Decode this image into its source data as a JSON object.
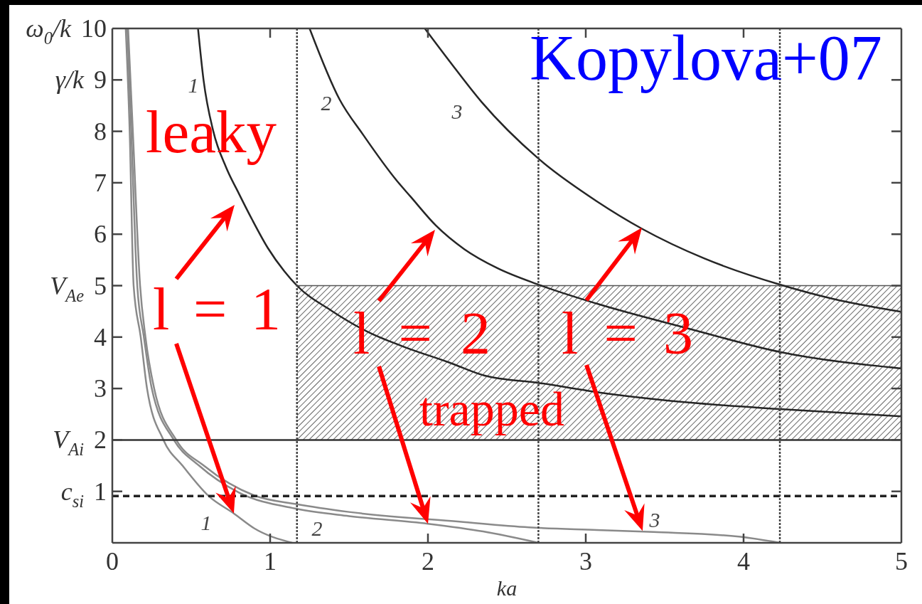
{
  "chart_data": {
    "type": "line",
    "xlabel": "ka",
    "xlim": [
      0,
      5
    ],
    "xticks": [
      0,
      1,
      2,
      3,
      4,
      5
    ],
    "ylim": [
      0,
      10
    ],
    "yticks": [
      {
        "value": 1,
        "label": "c$_{si}$ 1"
      },
      {
        "value": 2,
        "label": "V$_{Ai}$ 2"
      },
      3,
      4,
      {
        "value": 5,
        "label": "V$_{Ae}$ 5"
      },
      6,
      7,
      8,
      {
        "value": 9,
        "label": "γ/k 9"
      },
      {
        "value": 10,
        "label": "ω$_{0}$/k 10"
      }
    ],
    "series": [
      {
        "color": "#555555",
        "x": [
          1.17,
          5
        ],
        "values": [
          5,
          5
        ],
        "lower": [
          2,
          2
        ],
        "upper": [
          5,
          5
        ]
      },
      {
        "color": "#262626",
        "x": [
          0.543,
          0.578,
          0.64,
          0.721,
          0.802,
          0.885,
          0.986,
          1.09,
          1.17,
          1.39,
          1.62,
          1.84,
          2.14,
          2.36,
          2.7,
          3.07,
          3.72,
          4.23,
          5
        ],
        "values": [
          10,
          9,
          8,
          7.3,
          6.79,
          6.29,
          5.73,
          5.28,
          5,
          4.51,
          4.1,
          3.82,
          3.5,
          3.25,
          3.11,
          2.93,
          2.71,
          2.6,
          2.46
        ]
      },
      {
        "color": "#262626",
        "x": [
          1.25,
          1.44,
          1.59,
          1.8,
          1.89,
          2.05,
          2.23,
          2.44,
          2.7,
          3.07,
          3.67,
          4.23,
          5
        ],
        "values": [
          10,
          8.62,
          7.93,
          7.05,
          6.73,
          6.17,
          5.71,
          5.34,
          5.02,
          4.65,
          4.15,
          3.71,
          3.39
        ]
      },
      {
        "color": "#262626",
        "x": [
          1.98,
          2.14,
          2.34,
          2.7,
          3.07,
          3.36,
          3.75,
          4.23,
          4.57,
          5
        ],
        "values": [
          10,
          9.35,
          8.57,
          7.47,
          6.64,
          6.1,
          5.53,
          5.02,
          4.74,
          4.49
        ]
      },
      {
        "color": "#8a8a8a",
        "x": [
          0.085,
          0.11,
          0.135,
          0.18,
          0.22,
          0.324,
          0.445,
          0.61,
          0.77,
          0.9,
          1.14
        ],
        "values": [
          10,
          8,
          5,
          4,
          3,
          2,
          1.5,
          0.91,
          0.57,
          0.28,
          0
        ]
      },
      {
        "color": "#8a8a8a",
        "x": [
          0.095,
          0.12,
          0.158,
          0.2,
          0.25,
          0.39,
          0.55,
          0.8,
          1.17,
          1.5,
          2.0,
          2.35,
          2.7
        ],
        "values": [
          10,
          8,
          5,
          4,
          3,
          2,
          1.5,
          0.98,
          0.66,
          0.52,
          0.37,
          0.22,
          0
        ]
      },
      {
        "color": "#8a8a8a",
        "x": [
          0.1,
          0.13,
          0.176,
          0.21,
          0.265,
          0.405,
          0.58,
          0.9,
          1.17,
          1.5,
          2.2,
          2.64,
          3.07,
          3.43,
          3.97,
          4.23
        ],
        "values": [
          10,
          8,
          5,
          4,
          3,
          2,
          1.5,
          0.92,
          0.75,
          0.6,
          0.41,
          0.3,
          0.25,
          0.21,
          0.12,
          0
        ]
      }
    ],
    "ref_lines": [
      {
        "axis": "y",
        "value": 2,
        "color": "#333333",
        "line_style": "solid"
      },
      {
        "axis": "y",
        "value": 0.91,
        "color": "#222222",
        "line_style": "dashed"
      },
      {
        "axis": "x",
        "value": 1.17,
        "color": "#444444",
        "line_style": "dotted"
      },
      {
        "axis": "x",
        "value": 2.7,
        "color": "#444444",
        "line_style": "dotted"
      },
      {
        "axis": "x",
        "value": 4.23,
        "color": "#444444",
        "line_style": "dotted"
      }
    ],
    "annotations": [
      "Kopylova+07",
      "leaky",
      "trapped",
      "1",
      "2",
      "3",
      "1",
      "2",
      "3",
      {
        "text": "l = 1",
        "x": 0.77,
        "y": 0.57
      },
      {
        "text": "l = 2",
        "x": 2.0,
        "y": 0.37
      },
      {
        "text": "l = 3",
        "x": 3.36,
        "y": 0.23
      }
    ]
  }
}
